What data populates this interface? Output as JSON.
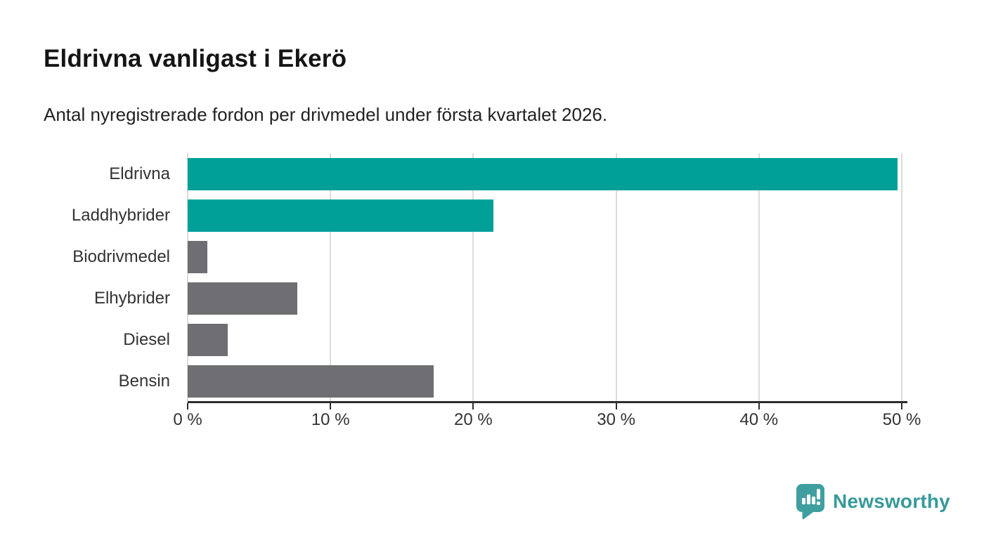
{
  "title": "Eldrivna vanligast i Ekerö",
  "subtitle": "Antal nyregistrerade fordon per drivmedel under första kvartalet 2026.",
  "chart_data": {
    "type": "bar",
    "orientation": "horizontal",
    "categories": [
      "Eldrivna",
      "Laddhybrider",
      "Biodrivmedel",
      "Elhybrider",
      "Diesel",
      "Bensin"
    ],
    "values": [
      49.7,
      21.4,
      1.4,
      7.7,
      2.8,
      17.2
    ],
    "unit": "%",
    "title": "Eldrivna vanligast i Ekerö",
    "xlabel": "",
    "ylabel": "",
    "xlim": [
      0,
      50
    ],
    "x_tick_labels": [
      "0 %",
      "10 %",
      "20 %",
      "30 %",
      "40 %",
      "50 %"
    ],
    "bar_colors": [
      "#00a099",
      "#00a099",
      "#6e6e73",
      "#6e6e73",
      "#6e6e73",
      "#6e6e73"
    ],
    "grid": "vertical-gridlines",
    "legend": "none"
  },
  "colors": {
    "accent_teal": "#00a099",
    "neutral_gray": "#6e6e73",
    "axis": "#2e2e2e",
    "gridline": "#dcdcdc",
    "brand_teal": "#38999a"
  },
  "branding": {
    "logo_text": "Newsworthy",
    "logo_icon": "newsworthy-speech-bubble-bar-chart-icon"
  }
}
